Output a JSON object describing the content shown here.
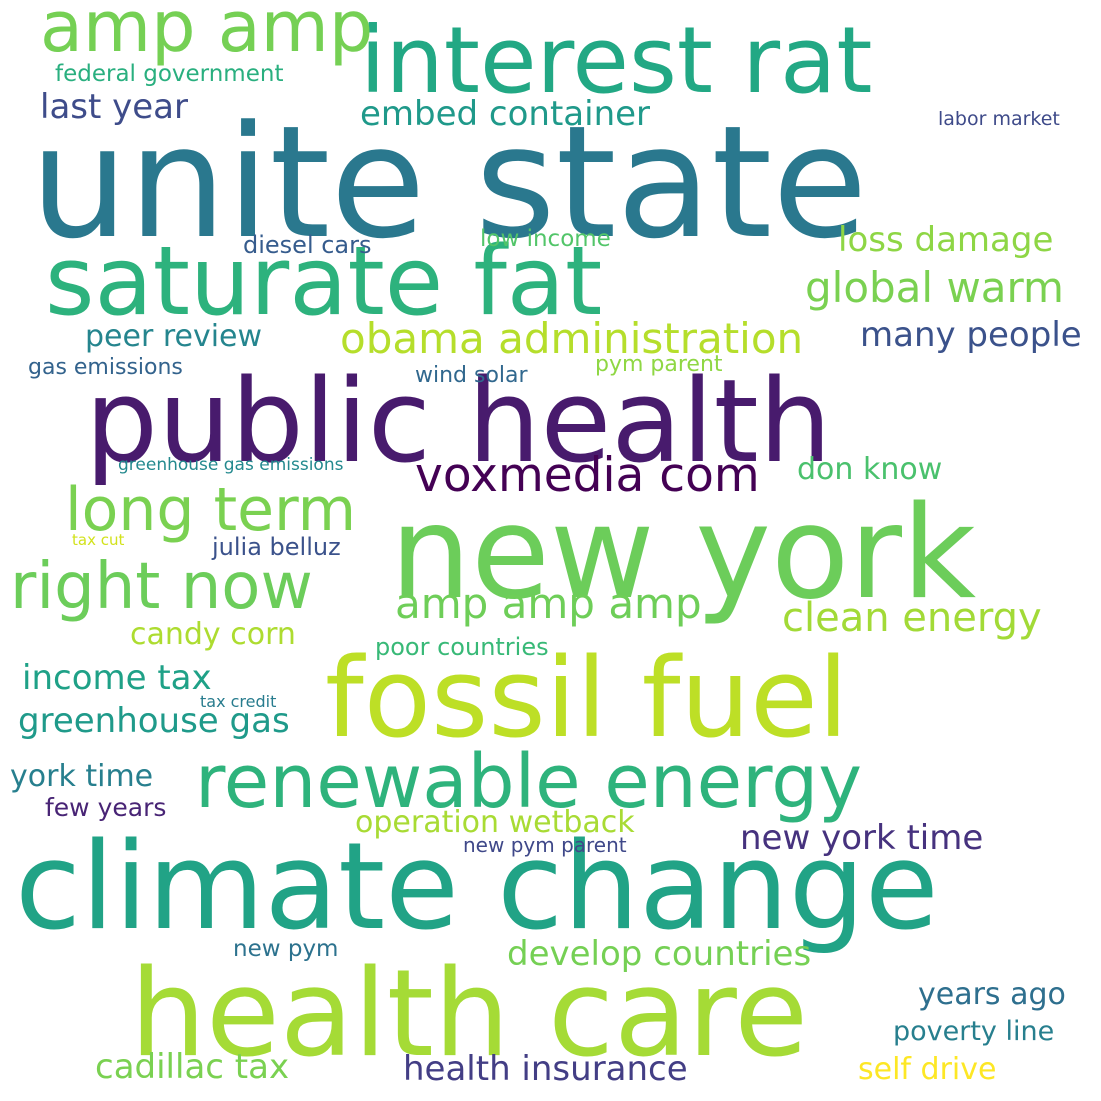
{
  "words": [
    {
      "text": "unite state",
      "color": "#2a788e"
    },
    {
      "text": "public health",
      "color": "#481b6d"
    },
    {
      "text": "new york",
      "color": "#6ccd5a"
    },
    {
      "text": "climate change",
      "color": "#21a386"
    },
    {
      "text": "fossil fuel",
      "color": "#bddf26"
    },
    {
      "text": "health care",
      "color": "#a5db36"
    },
    {
      "text": "interest rat",
      "color": "#22a884"
    },
    {
      "text": "saturate fat",
      "color": "#2db27d"
    },
    {
      "text": "renewable energy",
      "color": "#2eb37c"
    },
    {
      "text": "amp amp",
      "color": "#75d054"
    },
    {
      "text": "right now",
      "color": "#6ccd5a"
    },
    {
      "text": "long term",
      "color": "#7ad151"
    },
    {
      "text": "voxmedia com",
      "color": "#440154"
    },
    {
      "text": "obama administration",
      "color": "#b5de2b"
    },
    {
      "text": "global warm",
      "color": "#7ad151"
    },
    {
      "text": "amp amp amp",
      "color": "#6ece58"
    },
    {
      "text": "clean energy",
      "color": "#a2da37"
    },
    {
      "text": "loss damage",
      "color": "#8ed645"
    },
    {
      "text": "embed container",
      "color": "#1f998a"
    },
    {
      "text": "last year",
      "color": "#3e4c8a"
    },
    {
      "text": "many people",
      "color": "#3b528b"
    },
    {
      "text": "greenhouse gas",
      "color": "#1f9a8a"
    },
    {
      "text": "income tax",
      "color": "#1fa187"
    },
    {
      "text": "health insurance",
      "color": "#433e85"
    },
    {
      "text": "new york time",
      "color": "#46327e"
    },
    {
      "text": "develop countries",
      "color": "#75d054"
    },
    {
      "text": "cadillac tax",
      "color": "#7ad151"
    },
    {
      "text": "operation wetback",
      "color": "#a8db34"
    },
    {
      "text": "york time",
      "color": "#277f8e"
    },
    {
      "text": "years ago",
      "color": "#2e6f8e"
    },
    {
      "text": "peer review",
      "color": "#25858e"
    },
    {
      "text": "candy corn",
      "color": "#addc30"
    },
    {
      "text": "don know",
      "color": "#4ac16d"
    },
    {
      "text": "self drive",
      "color": "#fde725"
    },
    {
      "text": "poverty line",
      "color": "#277f8e"
    },
    {
      "text": "federal government",
      "color": "#29af7f"
    },
    {
      "text": "julia belluz",
      "color": "#3b528b"
    },
    {
      "text": "few years",
      "color": "#482475"
    },
    {
      "text": "diesel cars",
      "color": "#365c8d"
    },
    {
      "text": "low income",
      "color": "#52c569"
    },
    {
      "text": "gas emissions",
      "color": "#33638d"
    },
    {
      "text": "wind solar",
      "color": "#31688e"
    },
    {
      "text": "pym parent",
      "color": "#8fd744"
    },
    {
      "text": "poor countries",
      "color": "#38b977"
    },
    {
      "text": "new pym",
      "color": "#2c728e"
    },
    {
      "text": "new pym parent",
      "color": "#3f4889"
    },
    {
      "text": "labor market",
      "color": "#3e4a89"
    },
    {
      "text": "greenhouse gas emissions",
      "color": "#23898e"
    },
    {
      "text": "tax cut",
      "color": "#d2e21b"
    },
    {
      "text": "tax credit",
      "color": "#287c8e"
    }
  ]
}
